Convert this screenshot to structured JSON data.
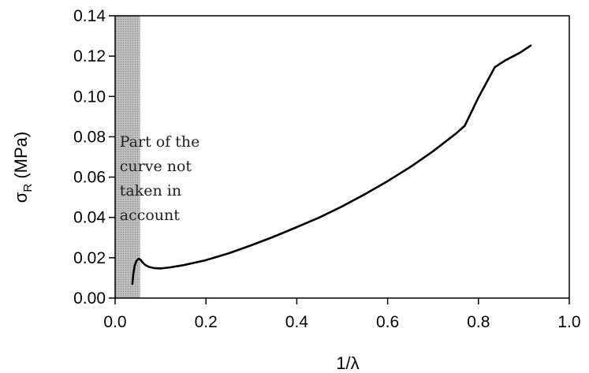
{
  "chart_data": {
    "type": "line",
    "xlabel": "1/λ",
    "ylabel": "σ",
    "ylabel_sub": "R",
    "ylabel_unit": " (MPa)",
    "xlim": [
      0.0,
      1.0
    ],
    "ylim": [
      0.0,
      0.14
    ],
    "x_ticks": [
      0.0,
      0.2,
      0.4,
      0.6,
      0.8,
      1.0
    ],
    "x_tick_labels": [
      "0.0",
      "0.2",
      "0.4",
      "0.6",
      "0.8",
      "1.0"
    ],
    "y_ticks": [
      0.0,
      0.02,
      0.04,
      0.06,
      0.08,
      0.1,
      0.12,
      0.14
    ],
    "y_tick_labels": [
      "0.00",
      "0.02",
      "0.04",
      "0.06",
      "0.08",
      "0.10",
      "0.12",
      "0.14"
    ],
    "grid": false,
    "series": [
      {
        "x": [
          0.038,
          0.04,
          0.043,
          0.047,
          0.052,
          0.056,
          0.06,
          0.066,
          0.074,
          0.085,
          0.1,
          0.12,
          0.15,
          0.2,
          0.25,
          0.3,
          0.35,
          0.4,
          0.45,
          0.5,
          0.55,
          0.6,
          0.65,
          0.7,
          0.75,
          0.77,
          0.8,
          0.836,
          0.86,
          0.89,
          0.915
        ],
        "y": [
          0.007,
          0.012,
          0.016,
          0.0185,
          0.0195,
          0.019,
          0.0178,
          0.0165,
          0.0155,
          0.0149,
          0.0147,
          0.0152,
          0.0163,
          0.0188,
          0.0222,
          0.0262,
          0.0305,
          0.0352,
          0.04,
          0.0455,
          0.0515,
          0.058,
          0.065,
          0.0728,
          0.0815,
          0.0855,
          0.0995,
          0.1145,
          0.118,
          0.1215,
          0.1252
        ],
        "color": "#000000"
      }
    ],
    "shaded_region": {
      "x_range": [
        0.0,
        0.055
      ],
      "color": "#a8a8a8"
    },
    "annotation": {
      "lines": [
        "Part of the",
        "curve not",
        "taken in",
        "account"
      ],
      "x": 0.01,
      "y": 0.075
    }
  }
}
